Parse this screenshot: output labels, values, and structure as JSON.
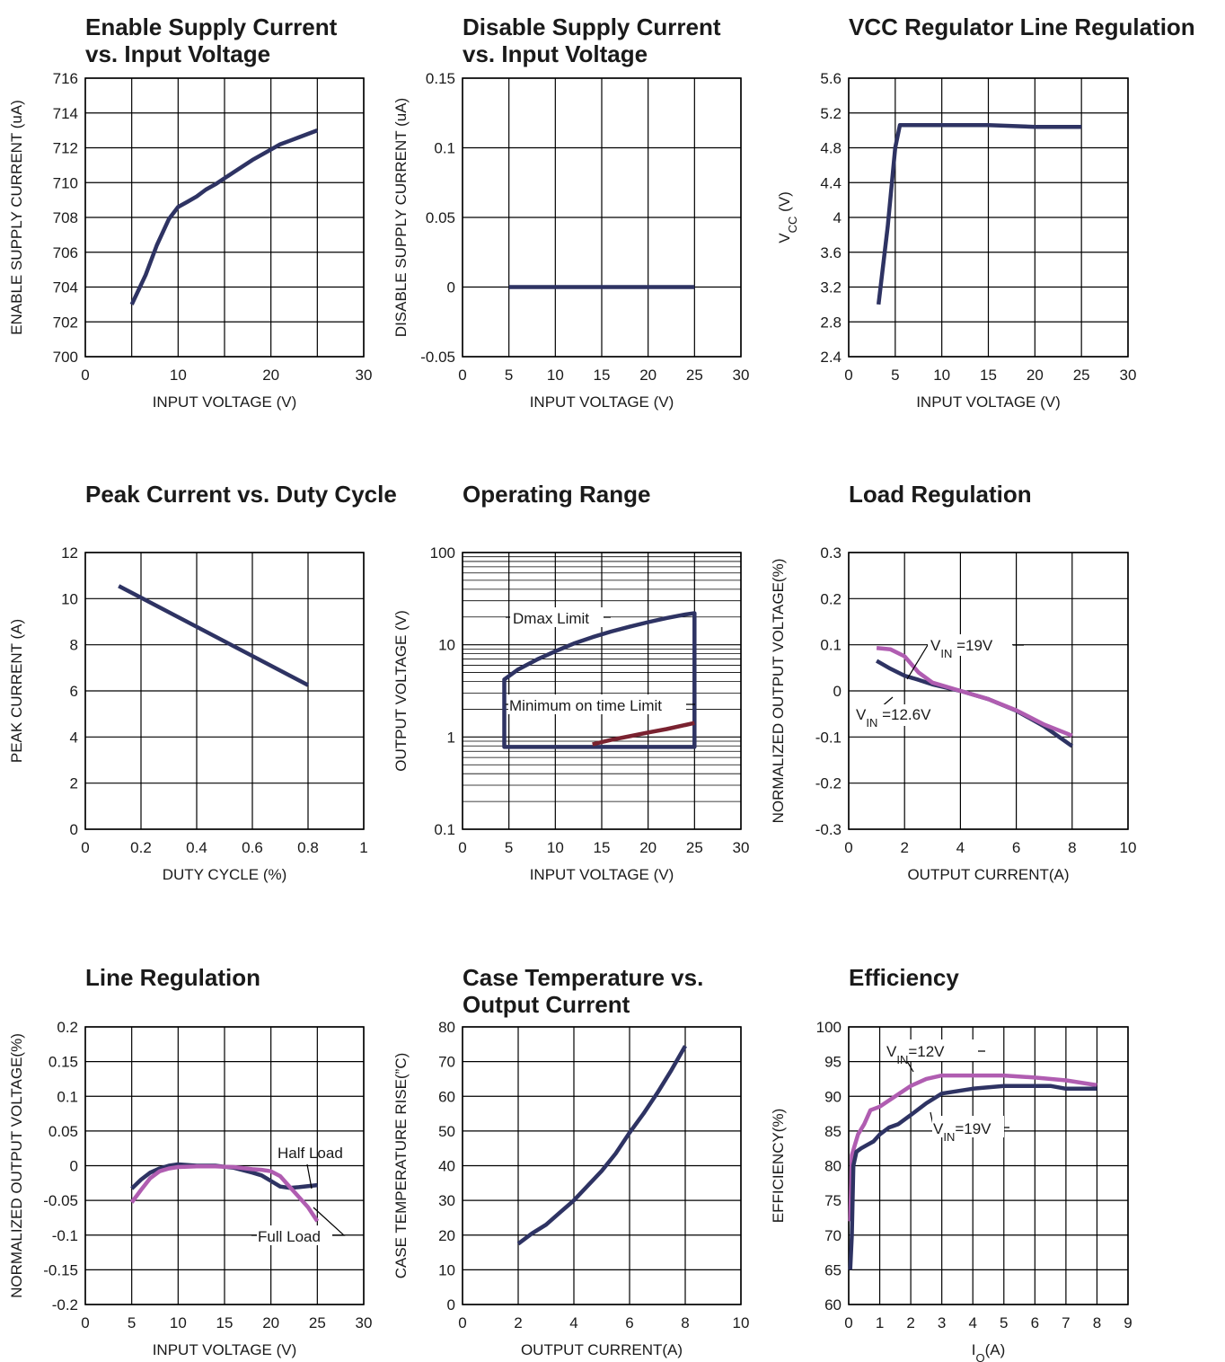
{
  "colors": {
    "navy": "#2e3363",
    "magenta": "#b05db1",
    "maroon": "#7a2230",
    "grid": "#000000",
    "text": "#1a1a1a"
  },
  "chart_data": [
    {
      "type": "line",
      "title": "Enable Supply Current vs. Input Voltage",
      "title_lines": [
        "Enable Supply Current",
        "vs. Input Voltage"
      ],
      "xlabel": "INPUT VOLTAGE (V)",
      "ylabel": "ENABLE SUPPLY CURRENT (uA)",
      "xlim": [
        0,
        30
      ],
      "ylim": [
        700,
        716
      ],
      "xticks": [
        0,
        10,
        20,
        30
      ],
      "yticks": [
        700,
        702,
        704,
        706,
        708,
        710,
        712,
        714,
        716
      ],
      "xgrid": [
        0,
        5,
        10,
        15,
        20,
        25,
        30
      ],
      "ygrid": [
        700,
        702,
        704,
        706,
        708,
        710,
        712,
        714,
        716
      ],
      "grid": true,
      "series": [
        {
          "color": "#2e3363",
          "x": [
            5,
            6.5,
            7.7,
            9,
            10,
            11,
            12,
            13,
            14,
            16,
            18,
            20,
            21,
            22,
            23,
            24,
            25
          ],
          "y": [
            703.0,
            704.7,
            706.4,
            707.9,
            708.6,
            708.9,
            709.2,
            709.6,
            709.9,
            710.6,
            711.3,
            711.9,
            712.2,
            712.4,
            712.6,
            712.8,
            713.0
          ]
        }
      ]
    },
    {
      "type": "line",
      "title": "Disable Supply Current vs. Input Voltage",
      "title_lines": [
        "Disable Supply Current",
        "vs. Input Voltage"
      ],
      "xlabel": "INPUT VOLTAGE (V)",
      "ylabel": "DISABLE SUPPLY CURRENT (uA)",
      "xlim": [
        0,
        30
      ],
      "ylim": [
        -0.05,
        0.15
      ],
      "xticks": [
        0,
        5,
        10,
        15,
        20,
        25,
        30
      ],
      "yticks": [
        -0.05,
        0,
        0.05,
        0.1,
        0.15
      ],
      "ytick_labels": [
        "-0.05",
        "0",
        "0.05",
        "0.1",
        "0.15"
      ],
      "xgrid": [
        0,
        5,
        10,
        15,
        20,
        25,
        30
      ],
      "ygrid": [
        -0.05,
        0,
        0.05,
        0.1,
        0.15
      ],
      "grid": true,
      "series": [
        {
          "color": "#2e3363",
          "x": [
            5,
            25
          ],
          "y": [
            0,
            0
          ]
        }
      ]
    },
    {
      "type": "line",
      "title": "VCC Regulator Line Regulation",
      "title_lines": [
        "VCC Regulator Line Regulation"
      ],
      "xlabel": "INPUT VOLTAGE (V)",
      "ylabel": "VCC (V)",
      "xlim": [
        0,
        30
      ],
      "ylim": [
        2.4,
        5.6
      ],
      "xticks": [
        0,
        5,
        10,
        15,
        20,
        25,
        30
      ],
      "yticks": [
        2.4,
        2.8,
        3.2,
        3.6,
        4.0,
        4.4,
        4.8,
        5.2,
        5.6
      ],
      "ytick_labels": [
        "2.4",
        "2.8",
        "3.2",
        "3.6",
        "4",
        "4.4",
        "4.8",
        "5.2",
        "5.6"
      ],
      "xgrid": [
        0,
        5,
        10,
        15,
        20,
        25,
        30
      ],
      "ygrid": [
        2.4,
        2.8,
        3.2,
        3.6,
        4.0,
        4.4,
        4.8,
        5.2,
        5.6
      ],
      "grid": true,
      "series": [
        {
          "color": "#2e3363",
          "x": [
            3.2,
            4.2,
            5.0,
            5.5,
            10,
            15,
            20,
            25
          ],
          "y": [
            3.0,
            3.9,
            4.8,
            5.06,
            5.06,
            5.06,
            5.04,
            5.04
          ]
        }
      ]
    },
    {
      "type": "line",
      "title": "Peak Current vs. Duty Cycle",
      "title_lines": [
        "Peak Current vs. Duty Cycle"
      ],
      "xlabel": "DUTY CYCLE (%)",
      "ylabel": "PEAK CURRENT (A)",
      "xlim": [
        0,
        1
      ],
      "ylim": [
        0,
        12
      ],
      "xticks": [
        0,
        0.2,
        0.4,
        0.6,
        0.8,
        1
      ],
      "yticks": [
        0,
        2,
        4,
        6,
        8,
        10,
        12
      ],
      "xgrid": [
        0,
        0.2,
        0.4,
        0.6,
        0.8,
        1
      ],
      "ygrid": [
        0,
        2,
        4,
        6,
        8,
        10,
        12
      ],
      "grid": true,
      "series": [
        {
          "color": "#2e3363",
          "x": [
            0.12,
            0.8
          ],
          "y": [
            10.55,
            6.25
          ]
        }
      ]
    },
    {
      "type": "line",
      "title": "Operating Range",
      "title_lines": [
        "Operating Range"
      ],
      "xlabel": "INPUT VOLTAGE (V)",
      "ylabel": "OUTPUT VOLTAGE (V)",
      "xlim": [
        0,
        30
      ],
      "ylim": [
        0.1,
        100
      ],
      "yscale": "log",
      "xticks": [
        0,
        5,
        10,
        15,
        20,
        25,
        30
      ],
      "yticks": [
        0.1,
        1,
        10,
        100
      ],
      "ytick_labels": [
        "0.1",
        "1",
        "10",
        "100"
      ],
      "xgrid": [
        0,
        5,
        10,
        15,
        20,
        25,
        30
      ],
      "ygrid": [
        0.1,
        0.2,
        0.3,
        0.4,
        0.5,
        0.6,
        0.7,
        0.8,
        0.9,
        1,
        2,
        3,
        4,
        5,
        6,
        7,
        8,
        9,
        10,
        20,
        30,
        40,
        50,
        60,
        70,
        80,
        90,
        100
      ],
      "grid": true,
      "series": [
        {
          "name": "Dmax Limit",
          "color": "#2e3363",
          "closed": true,
          "x": [
            4.5,
            6,
            8,
            10,
            12,
            14,
            16,
            18,
            20,
            22,
            24,
            25,
            25,
            4.5
          ],
          "y": [
            4.2,
            5.4,
            6.9,
            8.5,
            10.3,
            12.1,
            13.9,
            15.7,
            17.6,
            19.5,
            21.3,
            22.0,
            0.78,
            0.78
          ]
        },
        {
          "name": "Minimum on time Limit",
          "color": "#7a2230",
          "x": [
            14,
            15,
            16,
            18,
            20,
            22,
            24,
            25
          ],
          "y": [
            0.83,
            0.88,
            0.93,
            1.02,
            1.12,
            1.22,
            1.35,
            1.42
          ]
        }
      ],
      "annotations": [
        {
          "text": "Dmax Limit",
          "x": 9.3,
          "y": 20
        },
        {
          "text": "Minimum on time Limit",
          "x": 13.3,
          "y": 3.5
        }
      ]
    },
    {
      "type": "line",
      "title": "Load Regulation",
      "title_lines": [
        "Load Regulation"
      ],
      "xlabel": "OUTPUT CURRENT(A)",
      "ylabel": "NORMALIZED OUTPUT VOLTAGE(%)",
      "xlim": [
        0,
        10
      ],
      "ylim": [
        -0.3,
        0.3
      ],
      "xticks": [
        0,
        2,
        4,
        6,
        8,
        10
      ],
      "yticks": [
        -0.3,
        -0.2,
        -0.1,
        0,
        0.1,
        0.2,
        0.3
      ],
      "ytick_labels": [
        "-0.3",
        "-0.2",
        "-0.1",
        "0",
        "0.1",
        "0.2",
        "0.3"
      ],
      "xgrid": [
        0,
        2,
        4,
        6,
        8,
        10
      ],
      "ygrid": [
        -0.3,
        -0.2,
        -0.1,
        0,
        0.1,
        0.2,
        0.3
      ],
      "grid": true,
      "series": [
        {
          "name": "VIN =12.6V",
          "color": "#2e3363",
          "x": [
            1,
            1.5,
            2,
            2.5,
            3,
            4,
            5,
            6,
            7,
            8
          ],
          "y": [
            0.065,
            0.048,
            0.033,
            0.024,
            0.014,
            0.0,
            -0.018,
            -0.043,
            -0.077,
            -0.12
          ]
        },
        {
          "name": "VIN =19V",
          "color": "#b05db1",
          "x": [
            1,
            1.5,
            2,
            2.5,
            3,
            4,
            5,
            6,
            7,
            8
          ],
          "y": [
            0.093,
            0.09,
            0.075,
            0.04,
            0.018,
            0.0,
            -0.018,
            -0.042,
            -0.073,
            -0.097
          ]
        }
      ],
      "annotations": [
        {
          "text": "VIN =19V",
          "sub": "IN",
          "x": 2.95,
          "y": 0.1
        },
        {
          "text": "VIN =12.6V",
          "sub": "IN",
          "x": 0.3,
          "y": -0.05
        }
      ]
    },
    {
      "type": "line",
      "title": "Line Regulation",
      "title_lines": [
        "Line Regulation"
      ],
      "xlabel": "INPUT VOLTAGE (V)",
      "ylabel": "NORMALIZED OUTPUT VOLTAGE(%)",
      "xlim": [
        0,
        30
      ],
      "ylim": [
        -0.2,
        0.2
      ],
      "xticks": [
        0,
        5,
        10,
        15,
        20,
        25,
        30
      ],
      "yticks": [
        -0.2,
        -0.15,
        -0.1,
        -0.05,
        0,
        0.05,
        0.1,
        0.15,
        0.2
      ],
      "ytick_labels": [
        "-0.2",
        "-0.15",
        "-0.1",
        "-0.05",
        "0",
        "0.05",
        "0.1",
        "0.15",
        "0.2"
      ],
      "xgrid": [
        0,
        5,
        10,
        15,
        20,
        25,
        30
      ],
      "ygrid": [
        -0.2,
        -0.15,
        -0.1,
        -0.05,
        0,
        0.05,
        0.1,
        0.15,
        0.2
      ],
      "grid": true,
      "series": [
        {
          "name": "Half Load",
          "color": "#2e3363",
          "x": [
            5,
            6,
            7,
            8,
            9,
            10,
            11,
            12,
            14,
            16,
            18,
            19,
            20,
            21,
            22,
            23,
            25
          ],
          "y": [
            -0.033,
            -0.02,
            -0.01,
            -0.004,
            0.0,
            0.002,
            0.001,
            0.0,
            0.0,
            -0.003,
            -0.01,
            -0.014,
            -0.022,
            -0.03,
            -0.032,
            -0.031,
            -0.028
          ]
        },
        {
          "name": "Full Load",
          "color": "#b05db1",
          "x": [
            5,
            6,
            7,
            8,
            9,
            10,
            12,
            14,
            16,
            18,
            19,
            20,
            21,
            22,
            23,
            24,
            25
          ],
          "y": [
            -0.053,
            -0.035,
            -0.018,
            -0.008,
            -0.004,
            -0.002,
            -0.001,
            -0.001,
            -0.002,
            -0.005,
            -0.006,
            -0.008,
            -0.015,
            -0.03,
            -0.045,
            -0.06,
            -0.08
          ]
        }
      ],
      "annotations": [
        {
          "text": "Half Load",
          "x": 20.2,
          "y": -0.028
        },
        {
          "text": "Full Load",
          "x": 18.7,
          "y": -0.118
        }
      ]
    },
    {
      "type": "line",
      "title": "Case Temperature vs. Output Current",
      "title_lines": [
        "Case Temperature vs.",
        "Output Current"
      ],
      "xlabel": "OUTPUT CURRENT(A)",
      "ylabel": "CASE TEMPERATURE RISE(”C)",
      "xlim": [
        0,
        10
      ],
      "ylim": [
        0,
        80
      ],
      "xticks": [
        0,
        2,
        4,
        6,
        8,
        10
      ],
      "yticks": [
        0,
        10,
        20,
        30,
        40,
        50,
        60,
        70,
        80
      ],
      "xgrid": [
        0,
        2,
        4,
        6,
        8,
        10
      ],
      "ygrid": [
        0,
        10,
        20,
        30,
        40,
        50,
        60,
        70,
        80
      ],
      "grid": true,
      "series": [
        {
          "color": "#2e3363",
          "x": [
            2,
            2.5,
            3,
            3.5,
            4,
            5,
            5.5,
            6,
            6.5,
            7,
            7.5,
            8
          ],
          "y": [
            17.5,
            20.5,
            23,
            26.5,
            30,
            38.5,
            43.5,
            49.5,
            55,
            61,
            67.5,
            74.5
          ]
        }
      ]
    },
    {
      "type": "line",
      "title": "Efficiency",
      "title_lines": [
        "Efficiency"
      ],
      "xlabel": "IO(A)",
      "ylabel": "EFFICIENCY(%)",
      "xlim": [
        0,
        9
      ],
      "ylim": [
        60,
        100
      ],
      "xticks": [
        0,
        1,
        2,
        3,
        4,
        5,
        6,
        7,
        8,
        9
      ],
      "yticks": [
        60,
        65,
        70,
        75,
        80,
        85,
        90,
        95,
        100
      ],
      "xgrid": [
        0,
        1,
        2,
        3,
        4,
        5,
        6,
        7,
        8,
        9
      ],
      "ygrid": [
        60,
        65,
        70,
        75,
        80,
        85,
        90,
        95,
        100
      ],
      "grid": true,
      "series": [
        {
          "name": "VIN=12V",
          "color": "#b05db1",
          "x": [
            0.05,
            0.1,
            0.2,
            0.3,
            0.5,
            0.7,
            1,
            1.5,
            2,
            2.5,
            3,
            4,
            5,
            6,
            7,
            8
          ],
          "y": [
            72,
            81.5,
            83,
            84.5,
            86,
            88,
            88.5,
            90,
            91.5,
            92.5,
            93,
            93,
            93,
            92.7,
            92.3,
            91.6
          ]
        },
        {
          "name": "VIN=19V",
          "color": "#2e3363",
          "x": [
            0.05,
            0.1,
            0.15,
            0.25,
            0.4,
            0.6,
            0.8,
            1.0,
            1.3,
            1.6,
            2,
            2.5,
            3,
            4,
            5,
            6,
            6.5,
            7,
            8
          ],
          "y": [
            65,
            70,
            80,
            82,
            82.5,
            83,
            83.5,
            84.5,
            85.5,
            86,
            87.3,
            89,
            90.4,
            91.1,
            91.5,
            91.5,
            91.5,
            91.1,
            91.1
          ]
        }
      ],
      "annotations": [
        {
          "text": "VIN=12V",
          "sub": "IN",
          "x": 1.2,
          "y": 95.3
        },
        {
          "text": "VIN=19V",
          "sub": "IN",
          "x": 2.65,
          "y": 84
        }
      ]
    }
  ]
}
